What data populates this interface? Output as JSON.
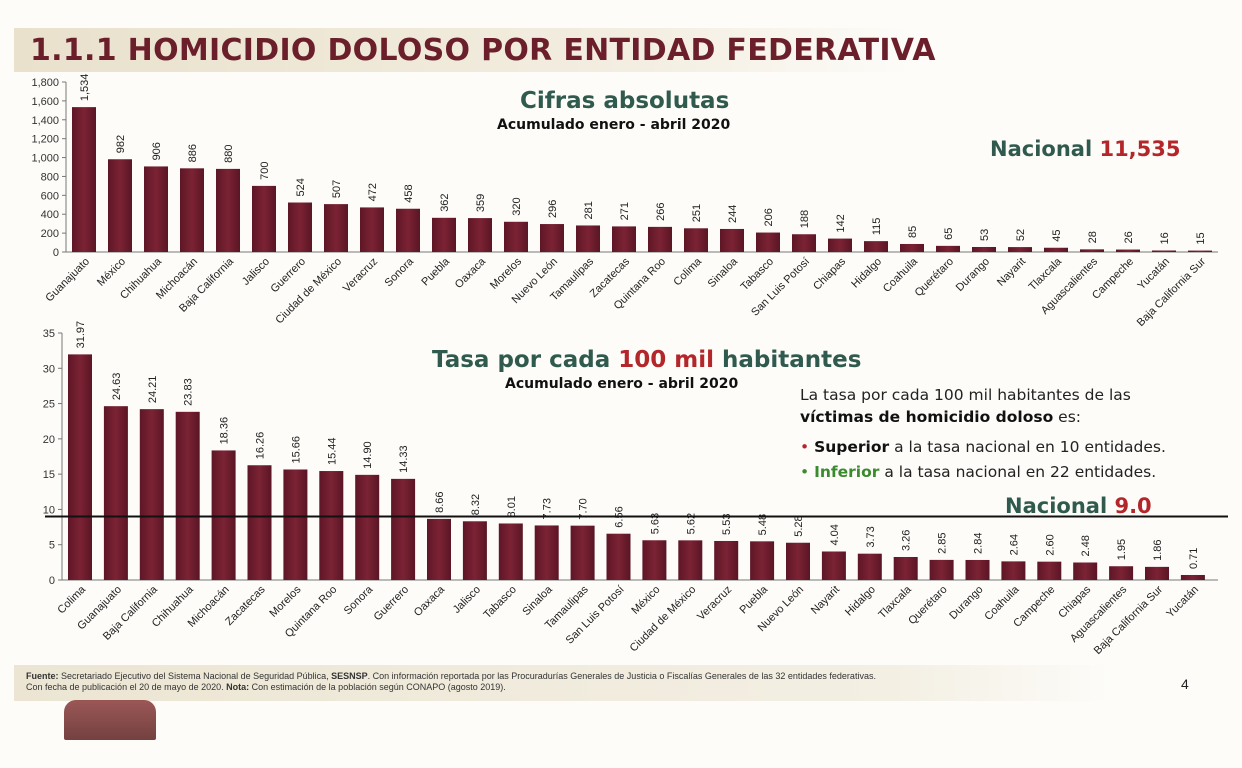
{
  "title": "1.1.1 HOMICIDIO DOLOSO POR ENTIDAD FEDERATIVA",
  "colors": {
    "bar": "#7b2335",
    "title": "#6b1f2a",
    "green": "#2f5a4d",
    "red": "#b3262a",
    "inferior": "#3a8a2e"
  },
  "nacional_abs": {
    "label": "Nacional",
    "value": "11,535"
  },
  "nacional_tasa": {
    "label": "Nacional",
    "value": "9.0"
  },
  "note": {
    "line1": "La tasa por cada 100 mil habitantes de las",
    "line2": "víctimas de homicidio doloso",
    "line2b": " es:",
    "sup": "Superior",
    "sup_rest": " a la tasa nacional en 10 entidades.",
    "inf": "Inferior",
    "inf_rest": " a la tasa nacional en 22 entidades."
  },
  "footer": {
    "fuente_label": "Fuente:",
    "fuente": " Secretariado Ejecutivo del Sistema Nacional de Seguridad Pública, ",
    "sesnsp": "SESNSP",
    "rest": ". Con información reportada por las Procuradurías Generales de Justicia o Fiscalías Generales de las 32 entidades federativas.",
    "line2": "Con fecha de publicación el 20 de mayo de 2020. ",
    "nota_label": "Nota:",
    "nota": " Con estimación de la población según CONAPO (agosto 2019)."
  },
  "page_number": "4",
  "chart_data": [
    {
      "type": "bar",
      "title": "Cifras absolutas",
      "subtitle": "Acumulado enero - abril 2020",
      "ylim": [
        0,
        1800
      ],
      "yticks": [
        "0",
        "200",
        "400",
        "600",
        "800",
        "1,000",
        "1,200",
        "1,400",
        "1,600",
        "1,800"
      ],
      "categories": [
        "Guanajuato",
        "México",
        "Chihuahua",
        "Michoacán",
        "Baja California",
        "Jalisco",
        "Guerrero",
        "Ciudad de México",
        "Veracruz",
        "Sonora",
        "Puebla",
        "Oaxaca",
        "Morelos",
        "Nuevo León",
        "Tamaulipas",
        "Zacatecas",
        "Quintana Roo",
        "Colima",
        "Sinaloa",
        "Tabasco",
        "San Luis Potosí",
        "Chiapas",
        "Hidalgo",
        "Coahuila",
        "Querétaro",
        "Durango",
        "Nayarit",
        "Tlaxcala",
        "Aguascalientes",
        "Campeche",
        "Yucatán",
        "Baja California Sur"
      ],
      "values": [
        1534,
        982,
        906,
        886,
        880,
        700,
        524,
        507,
        472,
        458,
        362,
        359,
        320,
        296,
        281,
        271,
        266,
        251,
        244,
        206,
        188,
        142,
        115,
        85,
        65,
        53,
        52,
        45,
        28,
        26,
        16,
        15
      ],
      "labels": [
        "1,534",
        "982",
        "906",
        "886",
        "880",
        "700",
        "524",
        "507",
        "472",
        "458",
        "362",
        "359",
        "320",
        "296",
        "281",
        "271",
        "266",
        "251",
        "244",
        "206",
        "188",
        "142",
        "115",
        "85",
        "65",
        "53",
        "52",
        "45",
        "28",
        "26",
        "16",
        "15"
      ]
    },
    {
      "type": "bar",
      "title_a": "Tasa por cada ",
      "title_b": "100 mil",
      "title_c": " habitantes",
      "subtitle": "Acumulado enero - abril 2020",
      "ylim": [
        0,
        35
      ],
      "yticks": [
        "0",
        "5",
        "10",
        "15",
        "20",
        "25",
        "30",
        "35"
      ],
      "reference_line": 9.0,
      "categories": [
        "Colima",
        "Guanajuato",
        "Baja California",
        "Chihuahua",
        "Michoacán",
        "Zacatecas",
        "Morelos",
        "Quintana Roo",
        "Sonora",
        "Guerrero",
        "Oaxaca",
        "Jalisco",
        "Tabasco",
        "Sinaloa",
        "Tamaulipas",
        "San Luis Potosí",
        "México",
        "Ciudad de México",
        "Veracruz",
        "Puebla",
        "Nuevo León",
        "Nayarit",
        "Hidalgo",
        "Tlaxcala",
        "Querétaro",
        "Durango",
        "Coahuila",
        "Campeche",
        "Chiapas",
        "Aguascalientes",
        "Baja California Sur",
        "Yucatán"
      ],
      "values": [
        31.97,
        24.63,
        24.21,
        23.83,
        18.36,
        16.26,
        15.66,
        15.44,
        14.9,
        14.33,
        8.66,
        8.32,
        8.01,
        7.73,
        7.7,
        6.56,
        5.63,
        5.62,
        5.53,
        5.48,
        5.28,
        4.04,
        3.73,
        3.26,
        2.85,
        2.84,
        2.64,
        2.6,
        2.48,
        1.95,
        1.86,
        0.71
      ],
      "labels": [
        "31.97",
        "24.63",
        "24.21",
        "23.83",
        "18.36",
        "16.26",
        "15.66",
        "15.44",
        "14.90",
        "14.33",
        "8.66",
        "8.32",
        "8.01",
        "7.73",
        "7.70",
        "6.56",
        "5.63",
        "5.62",
        "5.53",
        "5.48",
        "5.28",
        "4.04",
        "3.73",
        "3.26",
        "2.85",
        "2.84",
        "2.64",
        "2.60",
        "2.48",
        "1.95",
        "1.86",
        "0.71"
      ]
    }
  ]
}
